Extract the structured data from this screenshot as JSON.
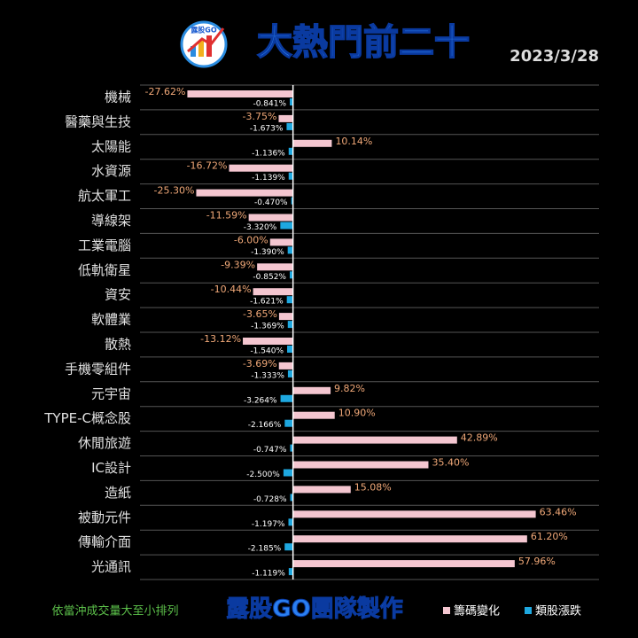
{
  "chart_data": {
    "type": "bar",
    "orientation": "horizontal",
    "title": "大熱門前二十",
    "date": "2023/3/28",
    "logo_text": "露股GO",
    "note": "依當沖成交量大至小排列",
    "credit": "露股GO團隊製作",
    "categories": [
      "機械",
      "醫藥與生技",
      "太陽能",
      "水資源",
      "航太軍工",
      "導線架",
      "工業電腦",
      "低軌衛星",
      "資安",
      "軟體業",
      "散熱",
      "手機零組件",
      "元宇宙",
      "TYPE-C概念股",
      "休閒旅遊",
      "IC設計",
      "造紙",
      "被動元件",
      "傳輸介面",
      "光通訊"
    ],
    "series": [
      {
        "name": "籌碼變化",
        "color": "#f4c6d0",
        "values": [
          -27.62,
          -3.75,
          10.14,
          -16.72,
          -25.3,
          -11.59,
          -6,
          -9.39,
          -10.44,
          -3.65,
          -13.12,
          -3.69,
          9.82,
          10.9,
          42.89,
          35.4,
          15.08,
          63.46,
          61.2,
          57.96
        ],
        "value_labels": [
          "-27.62%",
          "-3.75%",
          "10.14%",
          "-16.72%",
          "-25.30%",
          "-11.59%",
          "-6.00%",
          "-9.39%",
          "-10.44%",
          "-3.65%",
          "-13.12%",
          "-3.69%",
          "9.82%",
          "10.90%",
          "42.89%",
          "35.40%",
          "15.08%",
          "63.46%",
          "61.20%",
          "57.96%"
        ]
      },
      {
        "name": "類股漲跌",
        "color": "#1ea8e0",
        "values": [
          -0.841,
          -1.673,
          -1.136,
          -1.139,
          -0.47,
          -3.32,
          -1.39,
          -0.852,
          -1.621,
          -1.369,
          -1.54,
          -1.333,
          -3.264,
          -2.166,
          -0.747,
          -2.5,
          -0.728,
          -1.197,
          -2.185,
          -1.119
        ],
        "value_labels": [
          "-0.841%",
          "-1.673%",
          "-1.136%",
          "-1.139%",
          "-0.470%",
          "-3.320%",
          "-1.390%",
          "-0.852%",
          "-1.621%",
          "-1.369%",
          "-1.540%",
          "-1.333%",
          "-3.264%",
          "-2.166%",
          "-0.747%",
          "-2.500%",
          "-0.728%",
          "-1.197%",
          "-2.185%",
          "-1.119%"
        ]
      }
    ],
    "xlim": [
      -40,
      80
    ],
    "grid": true,
    "legend": "bottom-right"
  }
}
